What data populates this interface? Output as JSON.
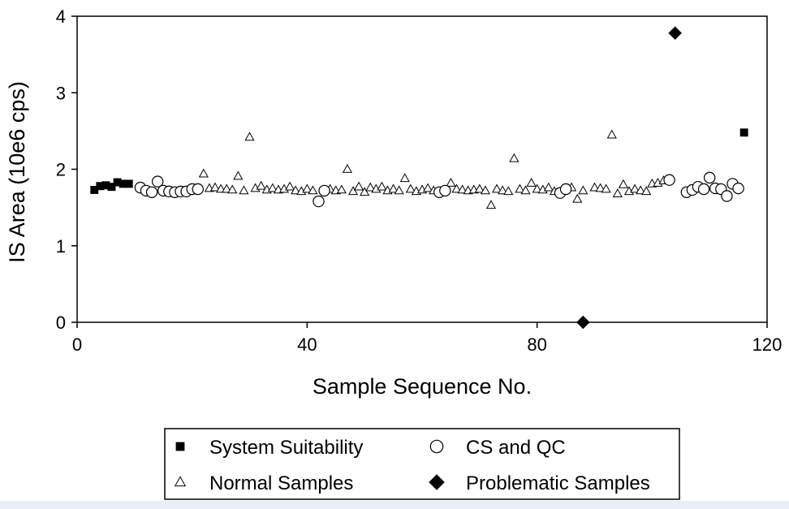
{
  "chart_data": {
    "type": "scatter",
    "xlabel": "Sample Sequence No.",
    "ylabel": "IS Area (10e6 cps)",
    "xlim": [
      0,
      120
    ],
    "ylim": [
      0,
      4
    ],
    "xticks": [
      "0",
      "40",
      "80",
      "120"
    ],
    "yticks": [
      "0",
      "1",
      "2",
      "3",
      "4"
    ],
    "grid": false,
    "legend_position": "bottom",
    "series": [
      {
        "name": "System Suitability",
        "marker": "filled-square",
        "color": "#000000",
        "points": [
          [
            3,
            1.73
          ],
          [
            4,
            1.78
          ],
          [
            5,
            1.79
          ],
          [
            6,
            1.77
          ],
          [
            7,
            1.83
          ],
          [
            8,
            1.81
          ],
          [
            9,
            1.81
          ],
          [
            116,
            2.48
          ]
        ]
      },
      {
        "name": "CS and QC",
        "marker": "open-circle",
        "color": "#000000",
        "points": [
          [
            11,
            1.76
          ],
          [
            12,
            1.72
          ],
          [
            13,
            1.7
          ],
          [
            14,
            1.84
          ],
          [
            15,
            1.72
          ],
          [
            16,
            1.71
          ],
          [
            17,
            1.7
          ],
          [
            18,
            1.71
          ],
          [
            19,
            1.71
          ],
          [
            20,
            1.74
          ],
          [
            21,
            1.74
          ],
          [
            42,
            1.58
          ],
          [
            43,
            1.72
          ],
          [
            63,
            1.7
          ],
          [
            64,
            1.72
          ],
          [
            84,
            1.69
          ],
          [
            85,
            1.74
          ],
          [
            103,
            1.86
          ],
          [
            106,
            1.7
          ],
          [
            107,
            1.73
          ],
          [
            108,
            1.77
          ],
          [
            109,
            1.74
          ],
          [
            110,
            1.89
          ],
          [
            111,
            1.75
          ],
          [
            112,
            1.74
          ],
          [
            113,
            1.65
          ],
          [
            114,
            1.81
          ],
          [
            115,
            1.75
          ]
        ]
      },
      {
        "name": "Normal Samples",
        "marker": "open-triangle",
        "color": "#000000",
        "points": [
          [
            22,
            1.94
          ],
          [
            23,
            1.75
          ],
          [
            24,
            1.76
          ],
          [
            25,
            1.74
          ],
          [
            26,
            1.74
          ],
          [
            27,
            1.73
          ],
          [
            28,
            1.91
          ],
          [
            29,
            1.72
          ],
          [
            30,
            2.42
          ],
          [
            31,
            1.75
          ],
          [
            32,
            1.78
          ],
          [
            33,
            1.73
          ],
          [
            34,
            1.75
          ],
          [
            35,
            1.73
          ],
          [
            36,
            1.74
          ],
          [
            37,
            1.77
          ],
          [
            38,
            1.72
          ],
          [
            39,
            1.71
          ],
          [
            40,
            1.74
          ],
          [
            41,
            1.72
          ],
          [
            44,
            1.74
          ],
          [
            45,
            1.72
          ],
          [
            46,
            1.73
          ],
          [
            47,
            2.0
          ],
          [
            48,
            1.71
          ],
          [
            49,
            1.77
          ],
          [
            50,
            1.7
          ],
          [
            51,
            1.76
          ],
          [
            52,
            1.74
          ],
          [
            53,
            1.77
          ],
          [
            54,
            1.72
          ],
          [
            55,
            1.74
          ],
          [
            56,
            1.72
          ],
          [
            57,
            1.88
          ],
          [
            58,
            1.74
          ],
          [
            59,
            1.71
          ],
          [
            60,
            1.73
          ],
          [
            61,
            1.75
          ],
          [
            62,
            1.72
          ],
          [
            65,
            1.82
          ],
          [
            66,
            1.74
          ],
          [
            67,
            1.73
          ],
          [
            68,
            1.72
          ],
          [
            69,
            1.73
          ],
          [
            70,
            1.74
          ],
          [
            71,
            1.72
          ],
          [
            72,
            1.53
          ],
          [
            73,
            1.74
          ],
          [
            74,
            1.72
          ],
          [
            75,
            1.71
          ],
          [
            76,
            2.14
          ],
          [
            77,
            1.74
          ],
          [
            78,
            1.72
          ],
          [
            79,
            1.82
          ],
          [
            80,
            1.74
          ],
          [
            81,
            1.73
          ],
          [
            82,
            1.76
          ],
          [
            83,
            1.71
          ],
          [
            86,
            1.76
          ],
          [
            87,
            1.61
          ],
          [
            88,
            1.72
          ],
          [
            90,
            1.76
          ],
          [
            91,
            1.75
          ],
          [
            92,
            1.74
          ],
          [
            93,
            2.45
          ],
          [
            94,
            1.68
          ],
          [
            95,
            1.8
          ],
          [
            96,
            1.71
          ],
          [
            97,
            1.74
          ],
          [
            98,
            1.72
          ],
          [
            99,
            1.71
          ],
          [
            100,
            1.81
          ],
          [
            101,
            1.82
          ],
          [
            102,
            1.85
          ]
        ]
      },
      {
        "name": "Problematic Samples",
        "marker": "filled-diamond",
        "color": "#000000",
        "points": [
          [
            88,
            0.0
          ],
          [
            104,
            3.78
          ]
        ]
      }
    ],
    "legend": [
      {
        "label": "System Suitability",
        "marker": "filled-square"
      },
      {
        "label": "CS and QC",
        "marker": "open-circle"
      },
      {
        "label": "Normal Samples",
        "marker": "open-triangle"
      },
      {
        "label": "Problematic Samples",
        "marker": "filled-diamond"
      }
    ]
  }
}
